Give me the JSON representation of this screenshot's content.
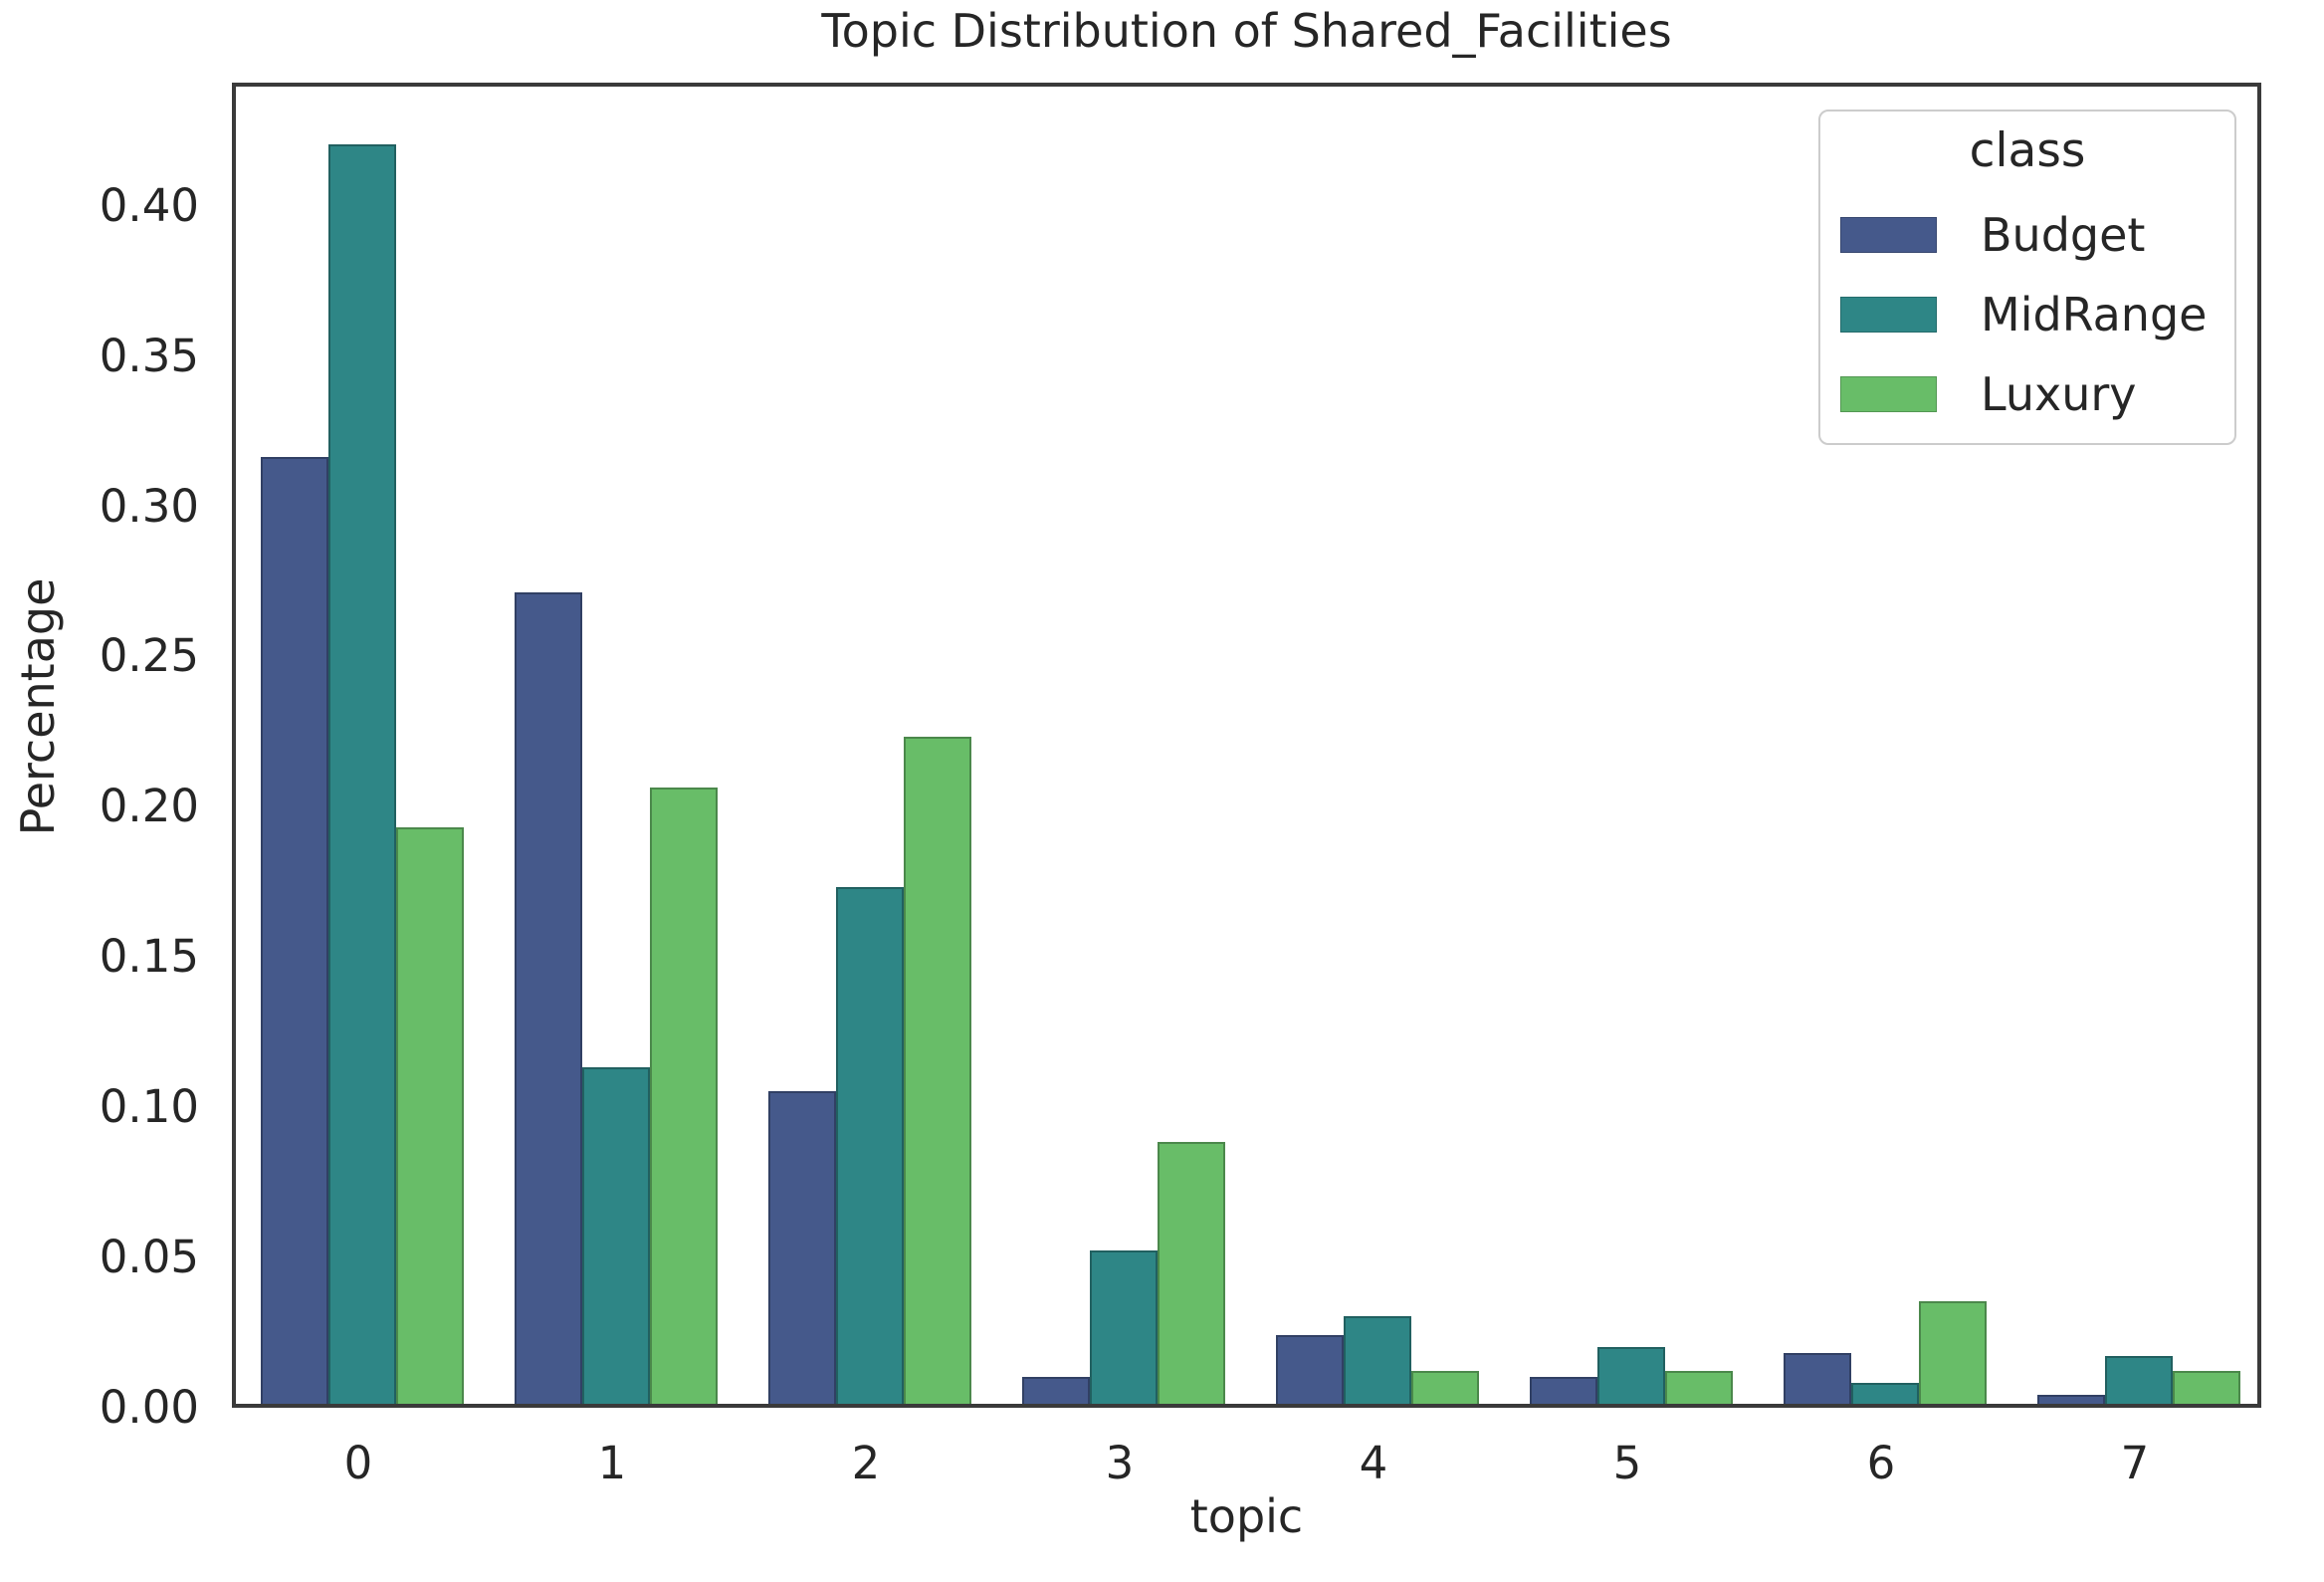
{
  "chart_data": {
    "type": "bar",
    "title": "Topic Distribution of Shared_Facilities",
    "xlabel": "topic",
    "ylabel": "Percentage",
    "categories": [
      "0",
      "1",
      "2",
      "3",
      "4",
      "5",
      "6",
      "7"
    ],
    "series": [
      {
        "name": "Budget",
        "color": "#45598b",
        "values": [
          0.315,
          0.27,
          0.104,
          0.009,
          0.023,
          0.009,
          0.017,
          0.003
        ]
      },
      {
        "name": "MidRange",
        "color": "#2e8686",
        "values": [
          0.419,
          0.112,
          0.172,
          0.051,
          0.029,
          0.019,
          0.007,
          0.016
        ]
      },
      {
        "name": "Luxury",
        "color": "#68bd68",
        "values": [
          0.192,
          0.205,
          0.222,
          0.087,
          0.011,
          0.011,
          0.034,
          0.011
        ]
      }
    ],
    "ylim": [
      0,
      0.441
    ],
    "yticks": [
      0.0,
      0.05,
      0.1,
      0.15,
      0.2,
      0.25,
      0.3,
      0.35,
      0.4
    ],
    "ytick_labels": [
      "0.00",
      "0.05",
      "0.10",
      "0.15",
      "0.20",
      "0.25",
      "0.30",
      "0.35",
      "0.40"
    ],
    "legend": {
      "title": "class",
      "position": "upper right",
      "entries": [
        "Budget",
        "MidRange",
        "Luxury"
      ]
    },
    "grid": false,
    "colors": {
      "spine": "#3a3a3a",
      "text": "#262626",
      "legend_border": "#cccccc",
      "background": "#ffffff"
    }
  }
}
